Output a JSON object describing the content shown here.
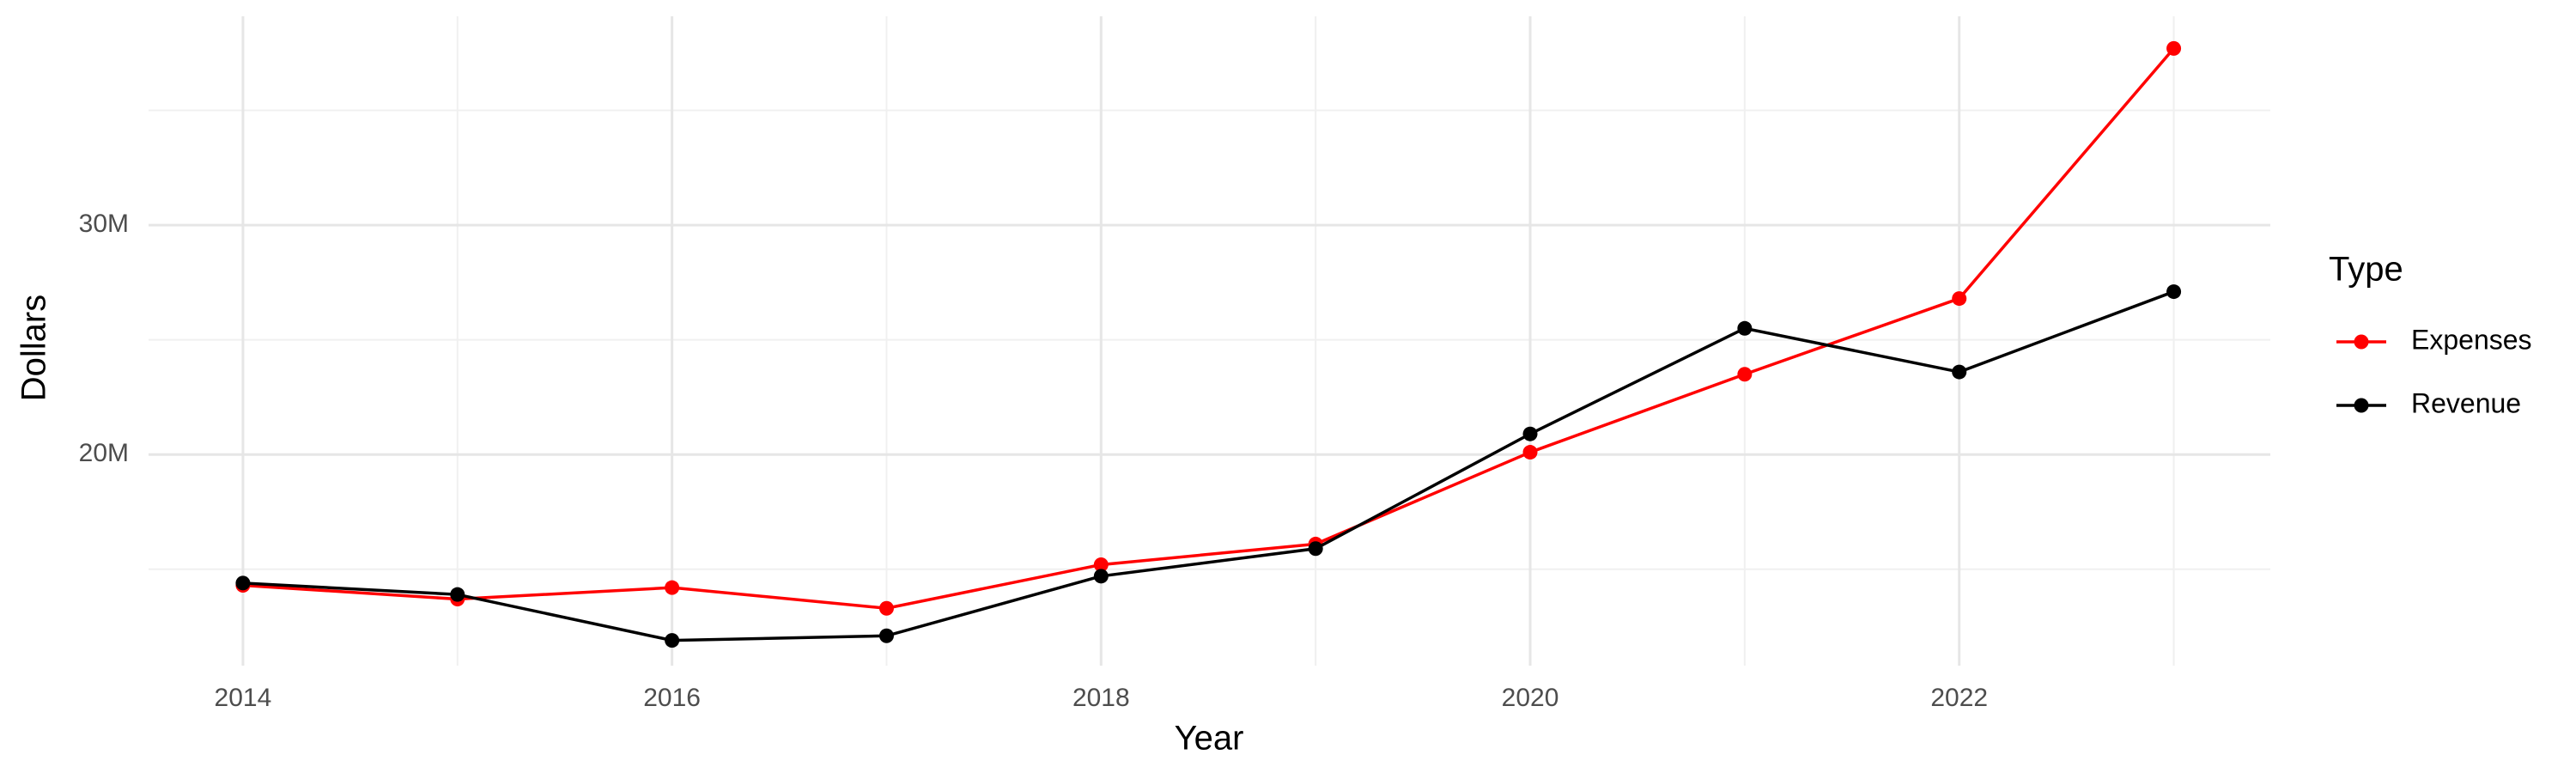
{
  "chart_data": {
    "type": "line",
    "x_label": "Year",
    "y_label": "Dollars",
    "x": [
      2014,
      2015,
      2016,
      2017,
      2018,
      2019,
      2020,
      2021,
      2022,
      2023
    ],
    "series": [
      {
        "name": "Expenses",
        "color": "#ff0000",
        "values": [
          14300000,
          13700000,
          14200000,
          13300000,
          15200000,
          16100000,
          20100000,
          23500000,
          26800000,
          37700000
        ]
      },
      {
        "name": "Revenue",
        "color": "#000000",
        "values": [
          14400000,
          13900000,
          11900000,
          12100000,
          14700000,
          15900000,
          20900000,
          25500000,
          23600000,
          27100000
        ]
      }
    ],
    "xlim": [
      2013.56,
      2023.45
    ],
    "xticks": [
      2014,
      2016,
      2018,
      2020,
      2022
    ],
    "x_minor_ticks": [
      2015,
      2017,
      2019,
      2021,
      2023
    ],
    "ylim": [
      10800000,
      39100000
    ],
    "yticks": [
      {
        "value": 20000000,
        "label": "20M"
      },
      {
        "value": 30000000,
        "label": "30M"
      }
    ],
    "y_minor_ticks": [
      15000000,
      25000000,
      35000000
    ],
    "grid": true,
    "legend_title": "Type",
    "legend_position": "right"
  }
}
